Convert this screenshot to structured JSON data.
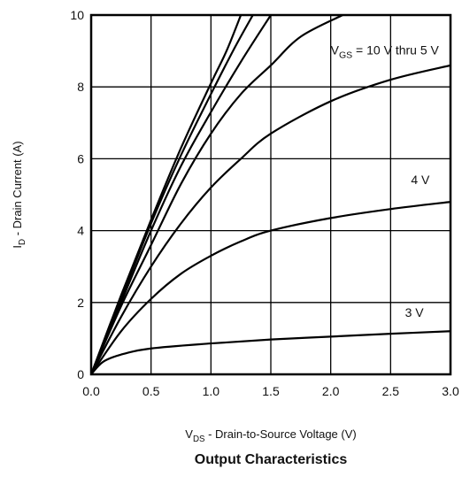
{
  "chart_data": {
    "type": "line",
    "title": "Output Characteristics",
    "xlabel": {
      "main": "V",
      "sub": "DS",
      "rest": " - Drain-to-Source Voltage (V)"
    },
    "ylabel": {
      "main": "I",
      "sub": "D",
      "rest": " - Drain Current (A)"
    },
    "xlim": [
      0,
      3.0
    ],
    "ylim": [
      0,
      10
    ],
    "x_ticks": [
      "0.0",
      "0.5",
      "1.0",
      "1.5",
      "2.0",
      "2.5",
      "3.0"
    ],
    "y_ticks": [
      "0",
      "2",
      "4",
      "6",
      "8",
      "10"
    ],
    "grid": true,
    "annotations": [
      {
        "id": "vgs-top",
        "parts": [
          {
            "t": "V"
          },
          {
            "t": "GS",
            "sub": true
          },
          {
            "t": " = 10 V thru 5 V"
          }
        ],
        "x": 2.0,
        "y": 8.9
      },
      {
        "id": "vgs-4",
        "parts": [
          {
            "t": "4 V"
          }
        ],
        "x": 2.67,
        "y": 5.3
      },
      {
        "id": "vgs-3",
        "parts": [
          {
            "t": "3 V"
          }
        ],
        "x": 2.62,
        "y": 1.6
      }
    ],
    "series": [
      {
        "values": [
          [
            0,
            0
          ],
          [
            0.25,
            2.2
          ],
          [
            0.5,
            4.3
          ],
          [
            0.75,
            6.3
          ],
          [
            1.0,
            8.1
          ],
          [
            1.13,
            9.0
          ],
          [
            1.25,
            10.0
          ]
        ]
      },
      {
        "values": [
          [
            0,
            0
          ],
          [
            0.25,
            2.1
          ],
          [
            0.5,
            4.2
          ],
          [
            0.75,
            6.1
          ],
          [
            1.0,
            7.8
          ],
          [
            1.2,
            9.1
          ],
          [
            1.35,
            10.0
          ]
        ]
      },
      {
        "values": [
          [
            0,
            0
          ],
          [
            0.25,
            2.0
          ],
          [
            0.5,
            4.0
          ],
          [
            0.75,
            5.8
          ],
          [
            1.0,
            7.3
          ],
          [
            1.25,
            8.7
          ],
          [
            1.5,
            10.0
          ]
        ]
      },
      {
        "values": [
          [
            0,
            0
          ],
          [
            0.25,
            1.9
          ],
          [
            0.5,
            3.6
          ],
          [
            0.75,
            5.3
          ],
          [
            1.0,
            6.7
          ],
          [
            1.25,
            7.8
          ],
          [
            1.5,
            8.6
          ],
          [
            1.75,
            9.4
          ],
          [
            2.1,
            10.0
          ]
        ]
      },
      {
        "values": [
          [
            0,
            0
          ],
          [
            0.25,
            1.6
          ],
          [
            0.5,
            3.0
          ],
          [
            0.75,
            4.2
          ],
          [
            1.0,
            5.2
          ],
          [
            1.25,
            6.0
          ],
          [
            1.5,
            6.7
          ],
          [
            2.0,
            7.6
          ],
          [
            2.5,
            8.2
          ],
          [
            3.0,
            8.6
          ]
        ]
      },
      {
        "values": [
          [
            0,
            0
          ],
          [
            0.25,
            1.2
          ],
          [
            0.5,
            2.1
          ],
          [
            0.75,
            2.8
          ],
          [
            1.0,
            3.3
          ],
          [
            1.25,
            3.7
          ],
          [
            1.5,
            4.0
          ],
          [
            2.0,
            4.35
          ],
          [
            2.5,
            4.6
          ],
          [
            3.0,
            4.8
          ]
        ]
      },
      {
        "values": [
          [
            0,
            0
          ],
          [
            0.1,
            0.35
          ],
          [
            0.25,
            0.55
          ],
          [
            0.5,
            0.72
          ],
          [
            1.0,
            0.86
          ],
          [
            1.5,
            0.97
          ],
          [
            2.0,
            1.05
          ],
          [
            2.5,
            1.13
          ],
          [
            3.0,
            1.2
          ]
        ]
      }
    ]
  }
}
